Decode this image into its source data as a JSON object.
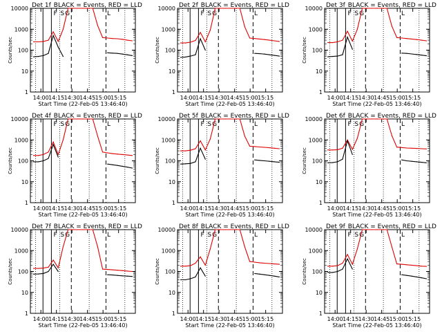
{
  "chart_data": [
    {
      "type": "line",
      "title_det": "Det 1f",
      "title_rest": "BLACK = Events, RED = LLD",
      "red": [
        250,
        250,
        260,
        300,
        750,
        260,
        1000,
        10000,
        10000,
        10000,
        10000,
        10000,
        10000,
        1500,
        400,
        380,
        360,
        350,
        330,
        300,
        280
      ],
      "black": [
        48,
        50,
        55,
        70,
        500,
        140,
        50,
        null,
        null,
        null,
        null,
        null,
        null,
        null,
        null,
        75,
        72,
        70,
        65,
        60,
        55
      ]
    },
    {
      "type": "line",
      "title_det": "Det 2f",
      "title_rest": "BLACK = Events, RED = LLD",
      "red": [
        220,
        220,
        240,
        290,
        700,
        250,
        900,
        10000,
        10000,
        10000,
        10000,
        10000,
        10000,
        1300,
        380,
        360,
        340,
        320,
        300,
        280,
        260
      ],
      "black": [
        45,
        47,
        52,
        60,
        350,
        100,
        null,
        null,
        null,
        null,
        null,
        null,
        null,
        null,
        null,
        70,
        68,
        65,
        60,
        56,
        52
      ]
    },
    {
      "type": "line",
      "title_det": "Det 3f",
      "title_rest": "BLACK = Events, RED = LLD",
      "red": [
        230,
        230,
        250,
        300,
        800,
        270,
        1000,
        10000,
        10000,
        10000,
        10000,
        10000,
        10000,
        1400,
        400,
        380,
        360,
        340,
        320,
        300,
        280
      ],
      "black": [
        48,
        50,
        52,
        60,
        420,
        110,
        null,
        null,
        null,
        null,
        null,
        null,
        null,
        null,
        null,
        72,
        70,
        66,
        62,
        58,
        54
      ]
    },
    {
      "type": "line",
      "title_det": "Det 4f",
      "title_rest": "BLACK = Events, RED = LLD",
      "red": [
        180,
        180,
        200,
        260,
        800,
        200,
        1000,
        10000,
        10000,
        10000,
        10000,
        10000,
        10000,
        1500,
        260,
        240,
        220,
        210,
        200,
        190,
        180
      ],
      "black": [
        90,
        90,
        100,
        130,
        600,
        150,
        null,
        null,
        null,
        null,
        null,
        null,
        null,
        null,
        null,
        70,
        65,
        60,
        55,
        50,
        45
      ]
    },
    {
      "type": "line",
      "title_det": "Det 5f",
      "title_rest": "BLACK = Events, RED = LLD",
      "red": [
        300,
        300,
        320,
        380,
        900,
        330,
        1100,
        10000,
        10000,
        10000,
        10000,
        10000,
        10000,
        1500,
        500,
        480,
        460,
        440,
        420,
        400,
        380
      ],
      "black": [
        70,
        72,
        75,
        90,
        400,
        120,
        null,
        null,
        null,
        null,
        null,
        null,
        null,
        null,
        null,
        110,
        105,
        100,
        95,
        90,
        85
      ]
    },
    {
      "type": "line",
      "title_det": "Det 6f",
      "title_rest": "BLACK = Events, RED = LLD",
      "red": [
        330,
        330,
        340,
        400,
        1000,
        350,
        1200,
        10000,
        10000,
        10000,
        10000,
        10000,
        10000,
        1600,
        450,
        430,
        410,
        400,
        390,
        380,
        370
      ],
      "black": [
        80,
        82,
        90,
        120,
        900,
        200,
        null,
        null,
        null,
        null,
        null,
        null,
        null,
        null,
        null,
        110,
        100,
        95,
        90,
        85,
        80
      ]
    },
    {
      "type": "line",
      "title_det": "Det 7f",
      "title_rest": "BLACK = Events, RED = LLD",
      "red": [
        140,
        140,
        145,
        160,
        350,
        150,
        1500,
        10000,
        10000,
        10000,
        10000,
        10000,
        10000,
        1500,
        130,
        125,
        120,
        115,
        110,
        105,
        100
      ],
      "black": [
        75,
        76,
        80,
        100,
        220,
        100,
        null,
        null,
        null,
        null,
        null,
        null,
        null,
        null,
        null,
        70,
        68,
        65,
        62,
        60,
        58
      ]
    },
    {
      "type": "line",
      "title_det": "Det 8f",
      "title_rest": "BLACK = Events, RED = LLD",
      "red": [
        180,
        180,
        190,
        250,
        500,
        200,
        1200,
        10000,
        10000,
        10000,
        10000,
        10000,
        10000,
        1500,
        300,
        280,
        260,
        250,
        240,
        230,
        220
      ],
      "black": [
        40,
        40,
        45,
        55,
        150,
        60,
        null,
        null,
        null,
        null,
        null,
        null,
        null,
        null,
        null,
        80,
        75,
        70,
        65,
        60,
        55
      ]
    },
    {
      "type": "line",
      "title_det": "Det 9f",
      "title_rest": "BLACK = Events, RED = LLD",
      "red": [
        180,
        180,
        190,
        250,
        650,
        220,
        1200,
        10000,
        10000,
        10000,
        10000,
        10000,
        10000,
        1500,
        230,
        220,
        210,
        200,
        190,
        180,
        175
      ],
      "black": [
        90,
        90,
        100,
        130,
        400,
        130,
        null,
        null,
        null,
        null,
        null,
        null,
        null,
        null,
        null,
        70,
        65,
        60,
        55,
        50,
        45
      ]
    }
  ],
  "shared": {
    "xlabel": "Start Time (22-Feb-05 13:46:40)",
    "ylabel": "Counts/sec",
    "yticks": [
      "1",
      "10",
      "100",
      "1000",
      "10000"
    ],
    "xticks": [
      "14:00",
      "14:15",
      "14:30",
      "14:45",
      "15:00",
      "15:15"
    ],
    "markers": [
      {
        "label": "F",
        "style": "solid"
      },
      {
        "label": "S",
        "style": "solid"
      },
      {
        "label": "G",
        "style": "dashed"
      },
      {
        "label": "L",
        "style": "dashed"
      }
    ],
    "colors": {
      "red": "#dd0000",
      "black": "#000000",
      "axis": "#000000"
    }
  }
}
